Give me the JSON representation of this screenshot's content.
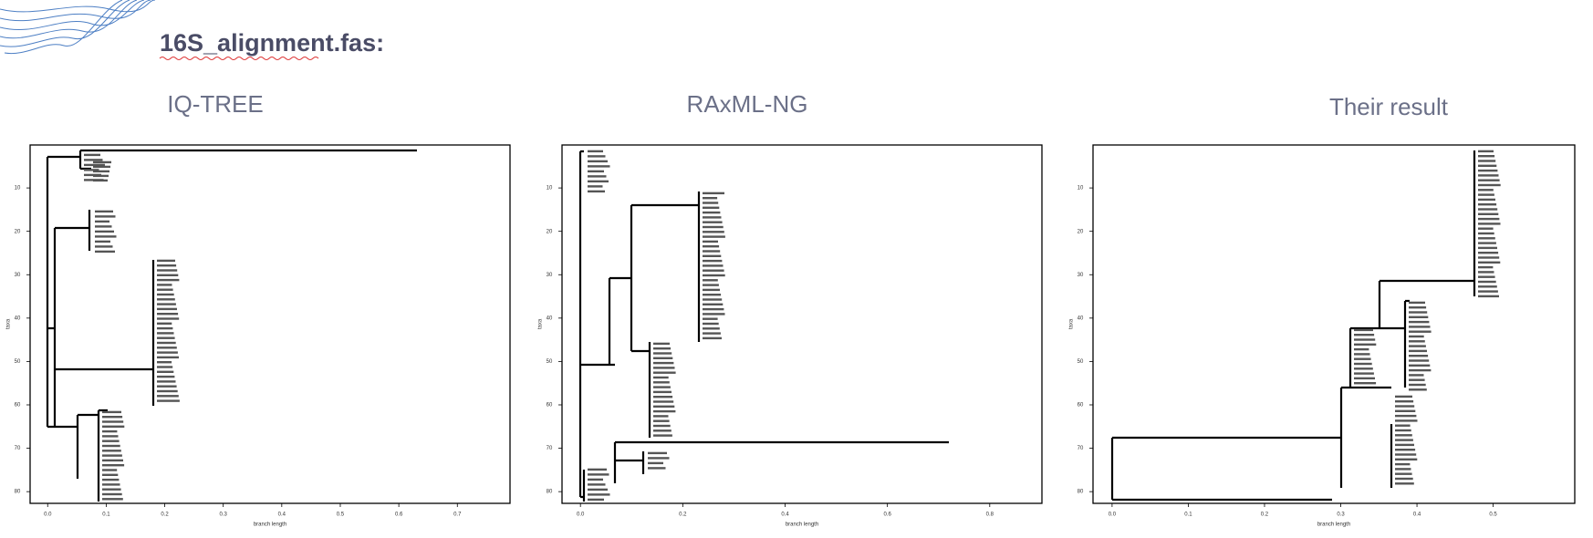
{
  "header": {
    "title": "16S_alignment.fas:"
  },
  "panels": [
    {
      "title": "IQ-TREE",
      "xlabel": "branch length",
      "ylabel": "taxa",
      "xlim": [
        -0.03,
        0.79
      ],
      "ylim": [
        0.1,
        82.7
      ],
      "xticks": [
        {
          "value": 0,
          "label": "0.0"
        },
        0.1,
        0.2,
        0.3,
        0.4,
        0.5,
        0.6,
        0.7
      ],
      "yticks": [
        10,
        20,
        30,
        40,
        50,
        60,
        70,
        80
      ]
    },
    {
      "title": "RAxML-NG",
      "xlabel": "branch length",
      "ylabel": "taxa",
      "xlim": [
        -0.036,
        0.902
      ],
      "ylim": [
        0.1,
        82.7
      ],
      "xticks": [
        {
          "value": 0,
          "label": "0.0"
        },
        0.2,
        0.4,
        0.6,
        0.8
      ],
      "yticks": [
        10,
        20,
        30,
        40,
        50,
        60,
        70,
        80
      ]
    },
    {
      "title": "Their result",
      "xlabel": "branch length",
      "ylabel": "taxa",
      "xlim": [
        -0.025,
        0.607
      ],
      "ylim": [
        0.1,
        82.7
      ],
      "xticks": [
        {
          "value": 0,
          "label": "0.0"
        },
        0.1,
        0.2,
        0.3,
        0.4,
        0.5
      ],
      "yticks": [
        10,
        20,
        30,
        40,
        50,
        60,
        70,
        80
      ]
    }
  ]
}
